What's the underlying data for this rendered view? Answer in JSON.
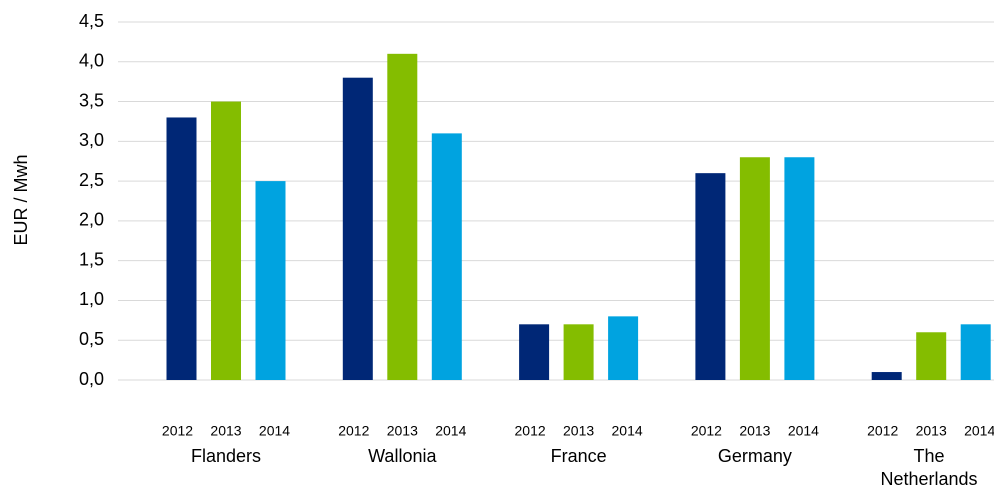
{
  "chart_data": {
    "type": "bar",
    "y_label": "EUR / Mwh",
    "categories": [
      "Flanders",
      "Wallonia",
      "France",
      "Germany",
      "The Netherlands"
    ],
    "series": [
      {
        "name": "2012",
        "color": "#002776",
        "values": [
          3.3,
          3.8,
          0.7,
          2.6,
          0.1
        ]
      },
      {
        "name": "2013",
        "color": "#84bd00",
        "values": [
          3.5,
          4.1,
          0.7,
          2.8,
          0.6
        ]
      },
      {
        "name": "2014",
        "color": "#00a3e0",
        "values": [
          2.5,
          3.1,
          0.8,
          2.8,
          0.7
        ]
      }
    ],
    "ylim": [
      0,
      4.5
    ],
    "yticks": [
      {
        "value": 0,
        "label": "0,0"
      },
      {
        "value": 0.5,
        "label": "0,5"
      },
      {
        "value": 1,
        "label": "1,0"
      },
      {
        "value": 1.5,
        "label": "1,5"
      },
      {
        "value": 2,
        "label": "2,0"
      },
      {
        "value": 2.5,
        "label": "2,5"
      },
      {
        "value": 3,
        "label": "3,0"
      },
      {
        "value": 3.5,
        "label": "3,5"
      },
      {
        "value": 4,
        "label": "4,0"
      },
      {
        "value": 4.5,
        "label": "4,5"
      }
    ],
    "grid": true
  }
}
